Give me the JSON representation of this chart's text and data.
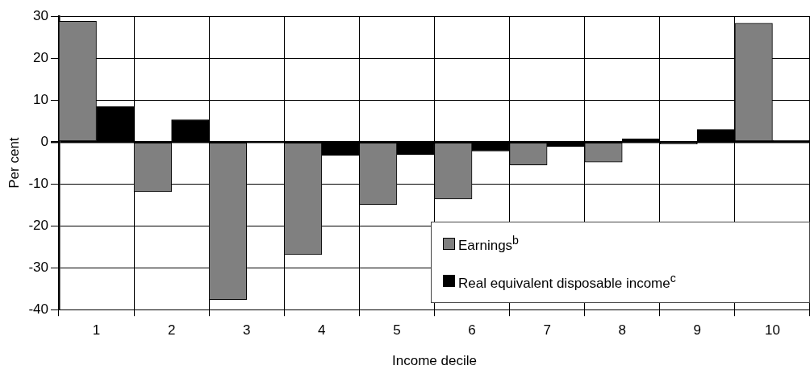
{
  "chart_data": {
    "type": "bar",
    "xlabel": "Income decile",
    "ylabel": "Per cent",
    "categories": [
      "1",
      "2",
      "3",
      "4",
      "5",
      "6",
      "7",
      "8",
      "9",
      "10"
    ],
    "series": [
      {
        "name": "Earnings$^{b}$",
        "color": "#808080",
        "values": [
          28.8,
          -11.9,
          -37.6,
          -26.9,
          -14.9,
          -13.6,
          -5.5,
          -4.8,
          -0.5,
          28.3
        ]
      },
      {
        "name": "Real equivalent disposable income$^{c}$",
        "color": "#000000",
        "values": [
          8.4,
          5.3,
          0,
          -3.2,
          -3.0,
          -2.2,
          -1.1,
          0.7,
          3.0,
          0.4
        ]
      }
    ],
    "ylim": [
      -40,
      30
    ],
    "yticks": [
      -40,
      -30,
      -20,
      -10,
      0,
      10,
      20,
      30
    ],
    "grid": true,
    "legend": "bottom right"
  }
}
